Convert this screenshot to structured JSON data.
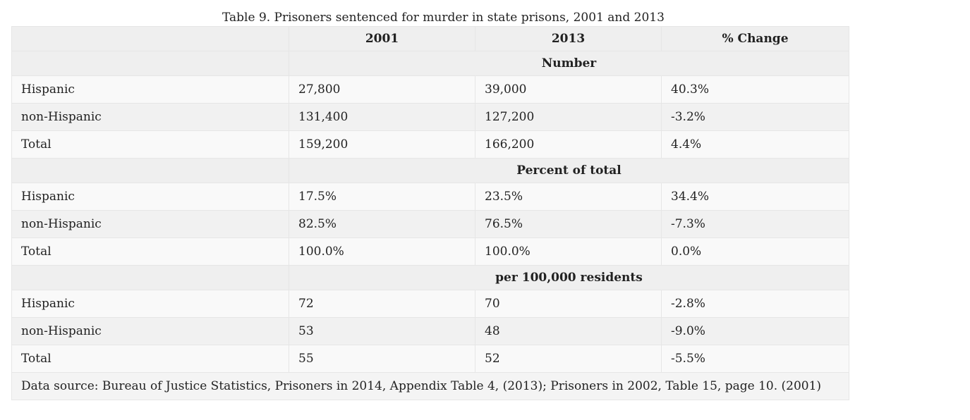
{
  "caption": "Table 9. Prisoners sentenced for murder in state prisons, 2001 and 2013",
  "headers": [
    "",
    "2001",
    "2013",
    "% Change"
  ],
  "sections": [
    {
      "title": "Number",
      "rows": [
        [
          "Hispanic",
          "27,800",
          "39,000",
          "40.3%"
        ],
        [
          "non-Hispanic",
          "131,400",
          "127,200",
          "-3.2%"
        ],
        [
          "Total",
          "159,200",
          "166,200",
          "4.4%"
        ]
      ]
    },
    {
      "title": "Percent of total",
      "rows": [
        [
          "Hispanic",
          "17.5%",
          "23.5%",
          "34.4%"
        ],
        [
          "non-Hispanic",
          "82.5%",
          "76.5%",
          "-7.3%"
        ],
        [
          "Total",
          "100.0%",
          "100.0%",
          "0.0%"
        ]
      ]
    },
    {
      "title": "per 100,000 residents",
      "rows": [
        [
          "Hispanic",
          "72",
          "70",
          "-2.8%"
        ],
        [
          "non-Hispanic",
          "53",
          "48",
          "-9.0%"
        ],
        [
          "Total",
          "55",
          "52",
          "-5.5%"
        ]
      ]
    }
  ],
  "source": "Data source: Bureau of Justice Statistics, Prisoners in 2014, Appendix Table 4, (2013); Prisoners in 2002, Table 15, page 10. (2001)"
}
